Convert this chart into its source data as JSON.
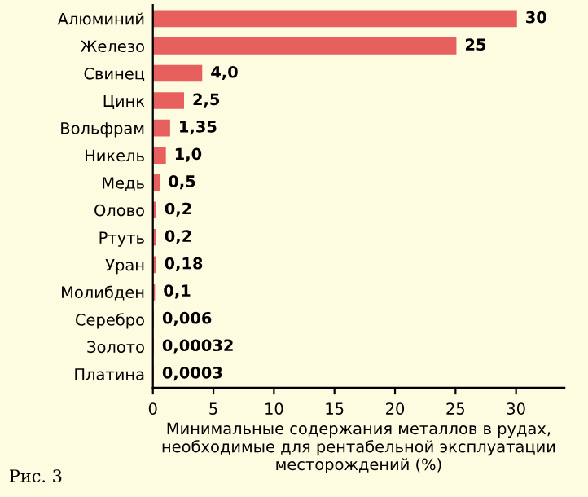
{
  "chart_data": {
    "type": "bar",
    "orientation": "horizontal",
    "categories": [
      "Алюминий",
      "Железо",
      "Свинец",
      "Цинк",
      "Вольфрам",
      "Никель",
      "Медь",
      "Олово",
      "Ртуть",
      "Уран",
      "Молибден",
      "Серебро",
      "Золото",
      "Платина"
    ],
    "values": [
      30,
      25,
      4.0,
      2.5,
      1.35,
      1.0,
      0.5,
      0.2,
      0.2,
      0.18,
      0.1,
      0.006,
      0.00032,
      0.0003
    ],
    "value_labels": [
      "30",
      "25",
      "4,0",
      "2,5",
      "1,35",
      "1,0",
      "0,5",
      "0,2",
      "0,2",
      "0,18",
      "0,1",
      "0,006",
      "0,00032",
      "0,0003"
    ],
    "color": "#e8605e",
    "xlim": [
      0,
      34
    ],
    "xticks": [
      0,
      5,
      10,
      15,
      20,
      25,
      30
    ],
    "xlabel": "Минимальные содержания металлов в рудах,\nнеобходимые для рентабельной эксплуатации\nместорождений (%)",
    "annotations": [
      "Рис. 3"
    ],
    "grid": false,
    "legend": false
  }
}
